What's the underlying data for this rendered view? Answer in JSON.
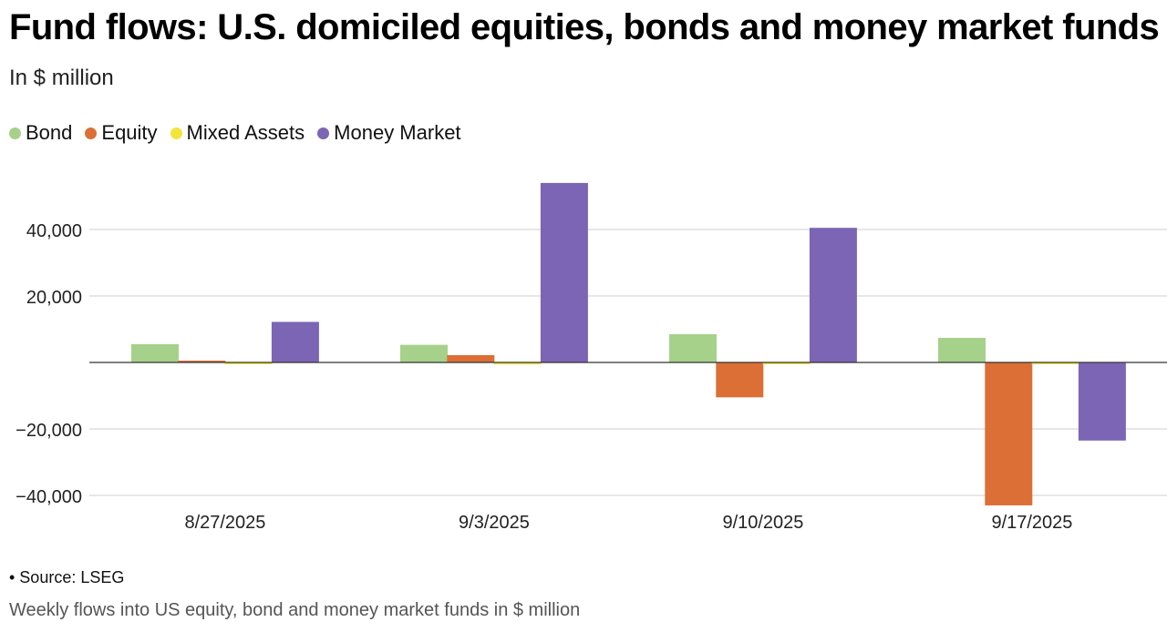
{
  "chart_data": {
    "type": "bar",
    "title": "Fund flows: U.S. domiciled equities, bonds and money market funds",
    "subtitle": "In $ million",
    "categories": [
      "8/27/2025",
      "9/3/2025",
      "9/10/2025",
      "9/17/2025"
    ],
    "series": [
      {
        "name": "Bond",
        "color": "#a6d18a",
        "values": [
          5500,
          5300,
          8500,
          7400
        ]
      },
      {
        "name": "Equity",
        "color": "#dc6f35",
        "values": [
          300,
          2200,
          -10500,
          -43000
        ]
      },
      {
        "name": "Mixed Assets",
        "color": "#f4e33b",
        "values": [
          -300,
          -600,
          -200,
          -200
        ]
      },
      {
        "name": "Money Market",
        "color": "#7b65b4",
        "values": [
          12200,
          54000,
          40500,
          -23500
        ]
      }
    ],
    "yticks": [
      {
        "value": 40000,
        "label": "40,000"
      },
      {
        "value": 20000,
        "label": "20,000"
      },
      {
        "value": -20000,
        "label": "−20,000"
      },
      {
        "value": -40000,
        "label": "−40,000"
      }
    ],
    "ylim": [
      -44000,
      56000
    ],
    "grid": true,
    "legend_position": "top-left",
    "xlabel": "",
    "ylabel": ""
  },
  "footer": {
    "source": "• Source: LSEG",
    "note": "Weekly flows into US equity, bond and money market funds in $ million"
  }
}
